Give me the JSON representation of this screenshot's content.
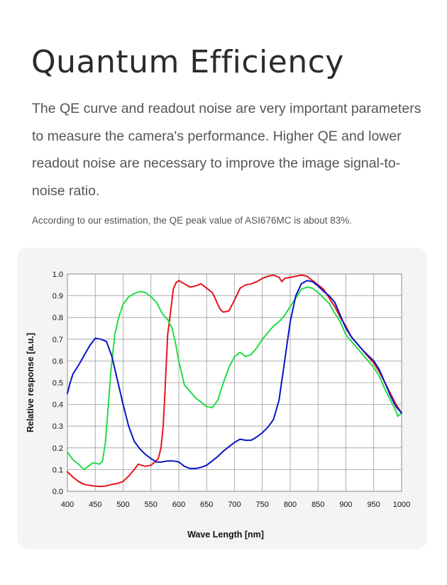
{
  "page": {
    "title": "Quantum Efficiency",
    "intro": "The QE curve and readout noise are very important parameters to measure the camera's performance. Higher QE and lower readout noise are necessary to improve the image signal-to-noise ratio.",
    "note": "According to our estimation, the QE peak value of ASI676MC is about 83%."
  },
  "chart_data": {
    "type": "line",
    "xlabel": "Wave Length [nm]",
    "ylabel": "Relative  response [a.u.]",
    "xlim": [
      400,
      1000
    ],
    "ylim": [
      0,
      1.0
    ],
    "grid": true,
    "x_ticks": [
      "400",
      "450",
      "500",
      "550",
      "600",
      "650",
      "700",
      "750",
      "800",
      "850",
      "900",
      "950",
      "1000"
    ],
    "y_ticks": [
      "0.0",
      "0.1",
      "0.2",
      "0.3",
      "0.4",
      "0.5",
      "0.6",
      "0.7",
      "0.8",
      "0.9",
      "1.0"
    ],
    "series": [
      {
        "color": "#e8141c",
        "points": [
          [
            400,
            0.09
          ],
          [
            410,
            0.065
          ],
          [
            420,
            0.045
          ],
          [
            430,
            0.032
          ],
          [
            440,
            0.027
          ],
          [
            450,
            0.024
          ],
          [
            460,
            0.022
          ],
          [
            470,
            0.025
          ],
          [
            480,
            0.032
          ],
          [
            490,
            0.036
          ],
          [
            500,
            0.045
          ],
          [
            510,
            0.07
          ],
          [
            520,
            0.1
          ],
          [
            527,
            0.125
          ],
          [
            533,
            0.12
          ],
          [
            540,
            0.115
          ],
          [
            550,
            0.12
          ],
          [
            557,
            0.135
          ],
          [
            563,
            0.15
          ],
          [
            568,
            0.2
          ],
          [
            572,
            0.3
          ],
          [
            575,
            0.45
          ],
          [
            580,
            0.72
          ],
          [
            585,
            0.82
          ],
          [
            590,
            0.93
          ],
          [
            595,
            0.96
          ],
          [
            600,
            0.97
          ],
          [
            610,
            0.955
          ],
          [
            620,
            0.94
          ],
          [
            630,
            0.945
          ],
          [
            640,
            0.955
          ],
          [
            650,
            0.935
          ],
          [
            660,
            0.915
          ],
          [
            665,
            0.89
          ],
          [
            670,
            0.86
          ],
          [
            675,
            0.835
          ],
          [
            680,
            0.825
          ],
          [
            690,
            0.83
          ],
          [
            700,
            0.88
          ],
          [
            710,
            0.935
          ],
          [
            720,
            0.95
          ],
          [
            730,
            0.955
          ],
          [
            740,
            0.965
          ],
          [
            750,
            0.98
          ],
          [
            760,
            0.99
          ],
          [
            770,
            0.995
          ],
          [
            780,
            0.985
          ],
          [
            785,
            0.965
          ],
          [
            790,
            0.98
          ],
          [
            800,
            0.985
          ],
          [
            810,
            0.99
          ],
          [
            820,
            0.995
          ],
          [
            830,
            0.99
          ],
          [
            840,
            0.97
          ],
          [
            850,
            0.95
          ],
          [
            860,
            0.93
          ],
          [
            870,
            0.89
          ],
          [
            880,
            0.85
          ],
          [
            890,
            0.8
          ],
          [
            900,
            0.76
          ],
          [
            910,
            0.71
          ],
          [
            920,
            0.68
          ],
          [
            930,
            0.65
          ],
          [
            940,
            0.62
          ],
          [
            950,
            0.59
          ],
          [
            960,
            0.55
          ],
          [
            970,
            0.5
          ],
          [
            980,
            0.45
          ],
          [
            990,
            0.4
          ],
          [
            1000,
            0.36
          ]
        ]
      },
      {
        "color": "#22dd44",
        "points": [
          [
            400,
            0.18
          ],
          [
            410,
            0.145
          ],
          [
            420,
            0.125
          ],
          [
            430,
            0.1
          ],
          [
            440,
            0.12
          ],
          [
            445,
            0.13
          ],
          [
            450,
            0.13
          ],
          [
            458,
            0.125
          ],
          [
            463,
            0.14
          ],
          [
            468,
            0.22
          ],
          [
            473,
            0.38
          ],
          [
            478,
            0.55
          ],
          [
            485,
            0.72
          ],
          [
            492,
            0.8
          ],
          [
            500,
            0.86
          ],
          [
            510,
            0.895
          ],
          [
            520,
            0.91
          ],
          [
            530,
            0.92
          ],
          [
            540,
            0.915
          ],
          [
            550,
            0.895
          ],
          [
            560,
            0.87
          ],
          [
            570,
            0.82
          ],
          [
            580,
            0.79
          ],
          [
            588,
            0.75
          ],
          [
            595,
            0.67
          ],
          [
            600,
            0.6
          ],
          [
            610,
            0.49
          ],
          [
            620,
            0.46
          ],
          [
            630,
            0.43
          ],
          [
            640,
            0.41
          ],
          [
            650,
            0.39
          ],
          [
            660,
            0.385
          ],
          [
            670,
            0.42
          ],
          [
            680,
            0.5
          ],
          [
            690,
            0.57
          ],
          [
            700,
            0.62
          ],
          [
            710,
            0.64
          ],
          [
            720,
            0.62
          ],
          [
            730,
            0.63
          ],
          [
            740,
            0.66
          ],
          [
            750,
            0.7
          ],
          [
            760,
            0.73
          ],
          [
            770,
            0.76
          ],
          [
            780,
            0.78
          ],
          [
            790,
            0.81
          ],
          [
            800,
            0.85
          ],
          [
            810,
            0.89
          ],
          [
            820,
            0.93
          ],
          [
            830,
            0.94
          ],
          [
            840,
            0.935
          ],
          [
            850,
            0.915
          ],
          [
            860,
            0.89
          ],
          [
            870,
            0.865
          ],
          [
            880,
            0.82
          ],
          [
            890,
            0.78
          ],
          [
            900,
            0.72
          ],
          [
            910,
            0.69
          ],
          [
            920,
            0.66
          ],
          [
            930,
            0.63
          ],
          [
            940,
            0.6
          ],
          [
            950,
            0.57
          ],
          [
            960,
            0.53
          ],
          [
            970,
            0.47
          ],
          [
            980,
            0.42
          ],
          [
            990,
            0.37
          ],
          [
            993,
            0.345
          ],
          [
            1000,
            0.36
          ]
        ]
      },
      {
        "color": "#0a14c8",
        "points": [
          [
            400,
            0.45
          ],
          [
            405,
            0.5
          ],
          [
            410,
            0.54
          ],
          [
            420,
            0.58
          ],
          [
            430,
            0.625
          ],
          [
            440,
            0.67
          ],
          [
            450,
            0.705
          ],
          [
            460,
            0.7
          ],
          [
            470,
            0.69
          ],
          [
            480,
            0.62
          ],
          [
            490,
            0.51
          ],
          [
            500,
            0.4
          ],
          [
            510,
            0.3
          ],
          [
            520,
            0.23
          ],
          [
            530,
            0.195
          ],
          [
            540,
            0.17
          ],
          [
            550,
            0.15
          ],
          [
            560,
            0.135
          ],
          [
            570,
            0.135
          ],
          [
            580,
            0.14
          ],
          [
            590,
            0.14
          ],
          [
            600,
            0.135
          ],
          [
            610,
            0.115
          ],
          [
            620,
            0.105
          ],
          [
            630,
            0.105
          ],
          [
            640,
            0.11
          ],
          [
            650,
            0.12
          ],
          [
            660,
            0.14
          ],
          [
            670,
            0.16
          ],
          [
            680,
            0.185
          ],
          [
            690,
            0.205
          ],
          [
            700,
            0.225
          ],
          [
            710,
            0.24
          ],
          [
            720,
            0.235
          ],
          [
            730,
            0.235
          ],
          [
            740,
            0.25
          ],
          [
            750,
            0.27
          ],
          [
            760,
            0.295
          ],
          [
            770,
            0.33
          ],
          [
            780,
            0.42
          ],
          [
            790,
            0.6
          ],
          [
            800,
            0.78
          ],
          [
            810,
            0.9
          ],
          [
            820,
            0.955
          ],
          [
            830,
            0.97
          ],
          [
            840,
            0.965
          ],
          [
            850,
            0.945
          ],
          [
            860,
            0.92
          ],
          [
            870,
            0.9
          ],
          [
            880,
            0.87
          ],
          [
            890,
            0.81
          ],
          [
            900,
            0.75
          ],
          [
            910,
            0.71
          ],
          [
            920,
            0.68
          ],
          [
            930,
            0.65
          ],
          [
            940,
            0.625
          ],
          [
            950,
            0.6
          ],
          [
            960,
            0.56
          ],
          [
            970,
            0.5
          ],
          [
            980,
            0.44
          ],
          [
            990,
            0.39
          ],
          [
            1000,
            0.36
          ]
        ]
      }
    ]
  }
}
